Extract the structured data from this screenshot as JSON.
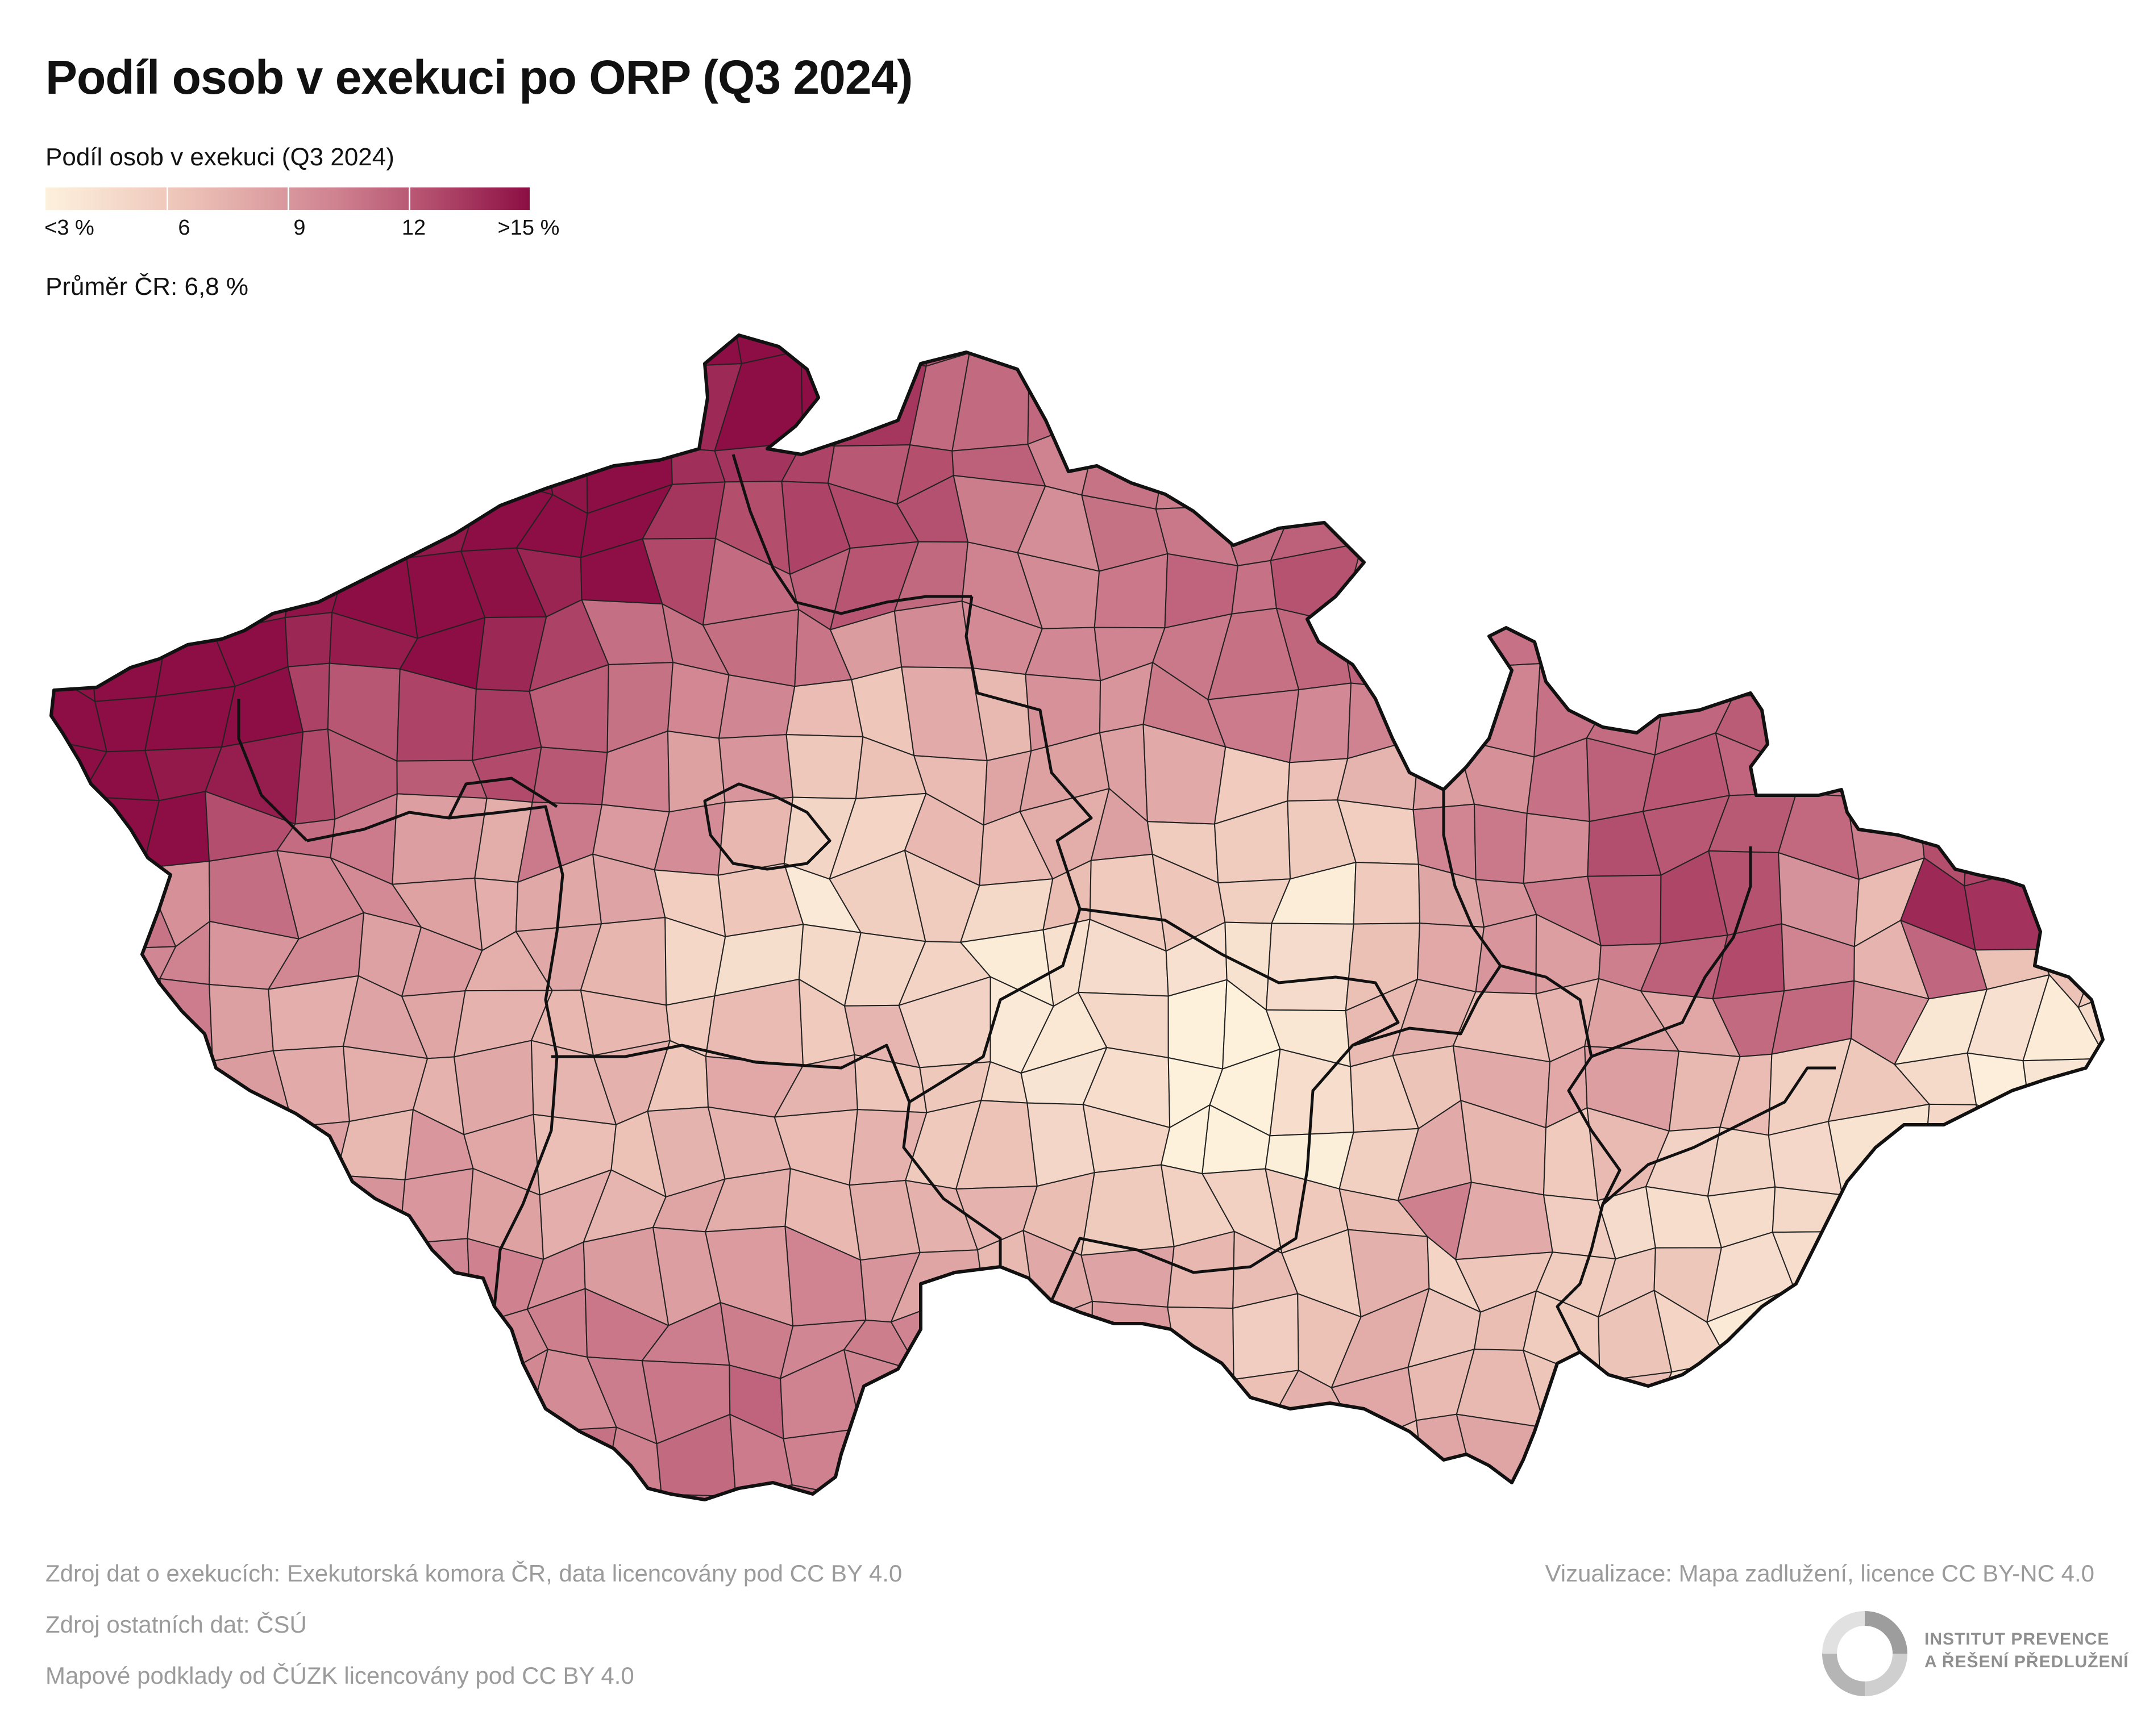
{
  "title": "Podíl osob v exekuci po ORP (Q3 2024)",
  "legend": {
    "title": "Podíl osob v exekuci (Q3 2024)",
    "labels": [
      "<3 %",
      "6",
      "9",
      "12",
      ">15 %"
    ],
    "colors": [
      "#fdf1dc",
      "#ecc1b6",
      "#cf8290",
      "#b24c6c",
      "#8c0e44"
    ]
  },
  "average": "Průměr ČR: 6,8 %",
  "footer": {
    "source_exekuce": "Zdroj dat o exekucích: Exekutorská komora ČR, data licencovány pod CC BY 4.0",
    "source_other": "Zdroj ostatních dat: ČSÚ",
    "source_maps": "Mapové podklady od ČÚZK licencovány pod CC BY 4.0",
    "visualization": "Vizualizace: Mapa zadlužení, licence CC BY-NC 4.0"
  },
  "logo": {
    "line1": "INSTITUT PREVENCE",
    "line2": "A ŘEŠENÍ PŘEDLUŽENÍ"
  }
}
